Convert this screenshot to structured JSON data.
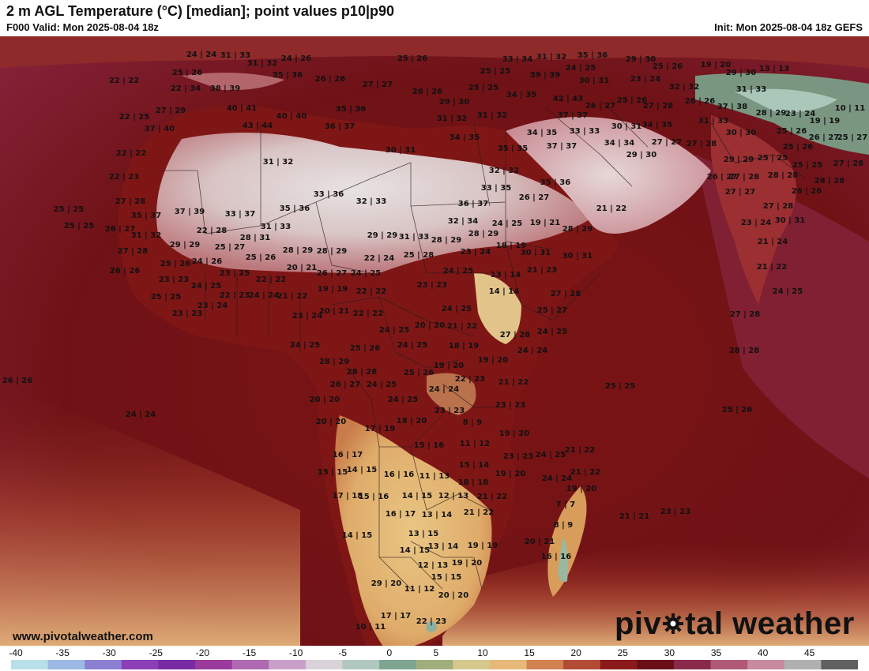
{
  "header": {
    "title": "2 m AGL Temperature (°C) [median]; point values p10|p90",
    "valid": "F000 Valid: Mon 2025-08-04 18z",
    "init": "Init: Mon 2025-08-04 18z GEFS"
  },
  "footer": {
    "website": "www.pivotalweather.com",
    "brand_left": "piv",
    "brand_right": "tal weather"
  },
  "colorbar": {
    "ticks": [
      "-40",
      "-35",
      "-30",
      "-25",
      "-20",
      "-15",
      "-10",
      "-5",
      "0",
      "5",
      "10",
      "15",
      "20",
      "25",
      "30",
      "35",
      "40",
      "45"
    ],
    "stops": [
      "#b9dfe9",
      "#9bb9e4",
      "#8a7fd3",
      "#8a3fb7",
      "#7a2aa2",
      "#9a3a9c",
      "#b06ab2",
      "#c9a0c9",
      "#d9d2d9",
      "#b0c8c0",
      "#7fa48f",
      "#9fae7a",
      "#d6c78c",
      "#e6b87a",
      "#d28150",
      "#b24c34",
      "#8b1a1a",
      "#6a0f16",
      "#8a2a4a",
      "#b05a78",
      "#c78aa0",
      "#b0b0b0",
      "#606060"
    ]
  },
  "map_layers": [
    "land-temperature-field",
    "ocean-temperature-field",
    "country-borders"
  ],
  "points": [
    [
      "24 | 24",
      255,
      69
    ],
    [
      "31 | 33",
      298,
      70
    ],
    [
      "24 | 26",
      375,
      74
    ],
    [
      "25 | 26",
      522,
      74
    ],
    [
      "33 | 34",
      655,
      75
    ],
    [
      "31 | 32",
      698,
      72
    ],
    [
      "35 | 36",
      750,
      70
    ],
    [
      "29 | 30",
      811,
      75
    ],
    [
      "25 | 26",
      845,
      84
    ],
    [
      "19 | 20",
      906,
      82
    ],
    [
      "22 | 22",
      157,
      102
    ],
    [
      "25 | 26",
      237,
      92
    ],
    [
      "31 | 32",
      332,
      80
    ],
    [
      "35 | 36",
      364,
      95
    ],
    [
      "26 | 26",
      418,
      100
    ],
    [
      "25 | 25",
      627,
      90
    ],
    [
      "39 | 39",
      690,
      95
    ],
    [
      "24 | 25",
      735,
      86
    ],
    [
      "30 | 31",
      752,
      102
    ],
    [
      "23 | 24",
      817,
      100
    ],
    [
      "29 | 30",
      938,
      92
    ],
    [
      "13 | 13",
      980,
      87
    ],
    [
      "22 | 34",
      235,
      112
    ],
    [
      "38 | 39",
      285,
      112
    ],
    [
      "27 | 27",
      478,
      107
    ],
    [
      "26 | 26",
      541,
      116
    ],
    [
      "25 | 25",
      612,
      111
    ],
    [
      "34 | 35",
      660,
      120
    ],
    [
      "42 | 43",
      719,
      125
    ],
    [
      "32 | 32",
      866,
      110
    ],
    [
      "31 | 33",
      951,
      113
    ],
    [
      "40 | 41",
      306,
      137
    ],
    [
      "40 | 40",
      369,
      147
    ],
    [
      "35 | 36",
      444,
      138
    ],
    [
      "29 | 30",
      575,
      129
    ],
    [
      "27 | 29",
      216,
      140
    ],
    [
      "26 | 27",
      760,
      134
    ],
    [
      "25 | 26",
      800,
      127
    ],
    [
      "27 | 28",
      833,
      134
    ],
    [
      "26 | 26",
      886,
      128
    ],
    [
      "37 | 38",
      927,
      135
    ],
    [
      "10 | 11",
      1076,
      137
    ],
    [
      "22 | 25",
      170,
      148
    ],
    [
      "43 | 44",
      326,
      159
    ],
    [
      "36 | 37",
      430,
      160
    ],
    [
      "31 | 32",
      572,
      150
    ],
    [
      "31 | 32",
      623,
      146
    ],
    [
      "37 | 37",
      725,
      146
    ],
    [
      "31 | 33",
      903,
      153
    ],
    [
      "28 | 29",
      976,
      143
    ],
    [
      "23 | 24",
      1013,
      144
    ],
    [
      "19 | 19",
      1044,
      153
    ],
    [
      "37 | 40",
      202,
      163
    ],
    [
      "34 | 35",
      588,
      174
    ],
    [
      "34 | 35",
      686,
      168
    ],
    [
      "33 | 33",
      740,
      166
    ],
    [
      "30 | 31",
      793,
      160
    ],
    [
      "34 | 35",
      832,
      158
    ],
    [
      "30 | 30",
      938,
      168
    ],
    [
      "25 | 26",
      1002,
      166
    ],
    [
      "26 | 27",
      1043,
      174
    ],
    [
      "25 | 27",
      1079,
      174
    ],
    [
      "22 | 22",
      166,
      194
    ],
    [
      "30 | 31",
      507,
      190
    ],
    [
      "35 | 35",
      649,
      188
    ],
    [
      "37 | 37",
      711,
      185
    ],
    [
      "34 | 34",
      784,
      181
    ],
    [
      "27 | 27",
      844,
      180
    ],
    [
      "27 | 28",
      888,
      182
    ],
    [
      "25 | 26",
      1010,
      186
    ],
    [
      "31 | 32",
      352,
      205
    ],
    [
      "29 | 30",
      812,
      196
    ],
    [
      "29 | 29",
      935,
      202
    ],
    [
      "25 | 25",
      978,
      200
    ],
    [
      "25 | 25",
      1022,
      209
    ],
    [
      "27 | 28",
      1074,
      207
    ],
    [
      "22 | 23",
      157,
      224
    ],
    [
      "32 | 32",
      638,
      216
    ],
    [
      "35 | 36",
      703,
      231
    ],
    [
      "26 | 27",
      914,
      224
    ],
    [
      "27 | 28",
      942,
      224
    ],
    [
      "28 | 28",
      991,
      222
    ],
    [
      "28 | 28",
      1050,
      229
    ],
    [
      "33 | 36",
      416,
      246
    ],
    [
      "32 | 33",
      470,
      255
    ],
    [
      "33 | 35",
      628,
      238
    ],
    [
      "26 | 26",
      1021,
      242
    ],
    [
      "27 | 27",
      937,
      243
    ],
    [
      "27 | 28",
      165,
      255
    ],
    [
      "36 | 37",
      599,
      258
    ],
    [
      "26 | 27",
      676,
      250
    ],
    [
      "21 | 22",
      774,
      264
    ],
    [
      "27 | 28",
      985,
      261
    ],
    [
      "25 | 25",
      87,
      265
    ],
    [
      "35 | 37",
      185,
      273
    ],
    [
      "37 | 39",
      240,
      268
    ],
    [
      "33 | 37",
      304,
      271
    ],
    [
      "35 | 36",
      373,
      264
    ],
    [
      "32 | 34",
      586,
      280
    ],
    [
      "24 | 25",
      642,
      283
    ],
    [
      "19 | 21",
      690,
      282
    ],
    [
      "23 | 24",
      957,
      282
    ],
    [
      "30 | 31",
      1000,
      279
    ],
    [
      "25 | 25",
      100,
      286
    ],
    [
      "26 | 27",
      152,
      290
    ],
    [
      "31 | 33",
      349,
      287
    ],
    [
      "22 | 28",
      268,
      292
    ],
    [
      "28 | 29",
      612,
      296
    ],
    [
      "28 | 29",
      731,
      290
    ],
    [
      "31 | 32",
      185,
      298
    ],
    [
      "28 | 31",
      323,
      301
    ],
    [
      "29 | 29",
      484,
      298
    ],
    [
      "31 | 33",
      524,
      300
    ],
    [
      "28 | 29",
      565,
      304
    ],
    [
      "18 | 19",
      647,
      311
    ],
    [
      "21 | 24",
      978,
      306
    ],
    [
      "27 | 28",
      168,
      318
    ],
    [
      "29 | 29",
      234,
      310
    ],
    [
      "25 | 27",
      291,
      313
    ],
    [
      "28 | 29",
      377,
      317
    ],
    [
      "28 | 29",
      420,
      318
    ],
    [
      "22 | 24",
      480,
      327
    ],
    [
      "25 | 28",
      530,
      323
    ],
    [
      "23 | 24",
      602,
      319
    ],
    [
      "30 | 31",
      678,
      320
    ],
    [
      "30 | 31",
      731,
      324
    ],
    [
      "26 | 26",
      158,
      343
    ],
    [
      "25 | 26",
      222,
      334
    ],
    [
      "24 | 26",
      262,
      331
    ],
    [
      "25 | 26",
      330,
      326
    ],
    [
      "20 | 21",
      382,
      339
    ],
    [
      "26 | 27",
      420,
      346
    ],
    [
      "24 | 25",
      463,
      346
    ],
    [
      "24 | 25",
      580,
      343
    ],
    [
      "13 | 14",
      640,
      348
    ],
    [
      "21 | 23",
      686,
      342
    ],
    [
      "21 | 22",
      977,
      338
    ],
    [
      "23 | 23",
      220,
      354
    ],
    [
      "24 | 25",
      261,
      362
    ],
    [
      "23 | 25",
      297,
      346
    ],
    [
      "22 | 22",
      343,
      354
    ],
    [
      "19 | 19",
      421,
      366
    ],
    [
      "22 | 22",
      470,
      369
    ],
    [
      "23 | 23",
      547,
      361
    ],
    [
      "14 | 14",
      638,
      369
    ],
    [
      "27 | 28",
      716,
      372
    ],
    [
      "25 | 25",
      210,
      376
    ],
    [
      "22 | 23",
      297,
      374
    ],
    [
      "24 | 24",
      334,
      374
    ],
    [
      "21 | 22",
      370,
      375
    ],
    [
      "24 | 25",
      578,
      391
    ],
    [
      "25 | 27",
      699,
      393
    ],
    [
      "24 | 25",
      997,
      369
    ],
    [
      "23 | 23",
      237,
      397
    ],
    [
      "23 | 24",
      269,
      387
    ],
    [
      "23 | 24",
      389,
      400
    ],
    [
      "20 | 21",
      423,
      394
    ],
    [
      "22 | 22",
      466,
      397
    ],
    [
      "27 | 28",
      943,
      398
    ],
    [
      "24 | 25",
      499,
      418
    ],
    [
      "20 | 20",
      544,
      412
    ],
    [
      "21 | 22",
      585,
      413
    ],
    [
      "27 | 28",
      652,
      424
    ],
    [
      "24 | 25",
      699,
      420
    ],
    [
      "24 | 25",
      386,
      437
    ],
    [
      "25 | 26",
      462,
      441
    ],
    [
      "24 | 25",
      522,
      437
    ],
    [
      "18 | 19",
      587,
      438
    ],
    [
      "24 | 24",
      674,
      444
    ],
    [
      "28 | 28",
      942,
      444
    ],
    [
      "28 | 29",
      423,
      458
    ],
    [
      "19 | 20",
      624,
      456
    ],
    [
      "26 | 26",
      22,
      482
    ],
    [
      "28 | 28",
      458,
      471
    ],
    [
      "25 | 26",
      530,
      472
    ],
    [
      "19 | 20",
      568,
      463
    ],
    [
      "22 | 23",
      595,
      480
    ],
    [
      "21 | 22",
      650,
      484
    ],
    [
      "25 | 25",
      785,
      489
    ],
    [
      "26 | 27",
      437,
      487
    ],
    [
      "24 | 25",
      483,
      487
    ],
    [
      "24 | 24",
      562,
      493
    ],
    [
      "20 | 20",
      411,
      506
    ],
    [
      "24 | 25",
      510,
      506
    ],
    [
      "23 | 23",
      646,
      513
    ],
    [
      "25 | 26",
      933,
      519
    ],
    [
      "24 | 24",
      178,
      525
    ],
    [
      "23 | 23",
      569,
      520
    ],
    [
      "20 | 20",
      419,
      534
    ],
    [
      "17 | 19",
      481,
      543
    ],
    [
      "18 | 20",
      521,
      533
    ],
    [
      "8 | 9",
      598,
      535
    ],
    [
      "19 | 20",
      651,
      549
    ],
    [
      "15 | 16",
      543,
      564
    ],
    [
      "11 | 12",
      601,
      562
    ],
    [
      "23 | 23",
      656,
      578
    ],
    [
      "24 | 25",
      697,
      576
    ],
    [
      "21 | 22",
      734,
      570
    ],
    [
      "16 | 17",
      440,
      576
    ],
    [
      "14 | 15",
      458,
      595
    ],
    [
      "15 | 14",
      600,
      589
    ],
    [
      "15 | 15",
      421,
      598
    ],
    [
      "16 | 16",
      505,
      601
    ],
    [
      "11 | 13",
      550,
      603
    ],
    [
      "18 | 18",
      599,
      611
    ],
    [
      "19 | 20",
      646,
      600
    ],
    [
      "24 | 24",
      705,
      606
    ],
    [
      "21 | 22",
      741,
      598
    ],
    [
      "17 | 18",
      440,
      628
    ],
    [
      "15 | 16",
      473,
      629
    ],
    [
      "14 | 15",
      528,
      628
    ],
    [
      "12 | 13",
      574,
      628
    ],
    [
      "21 | 22",
      623,
      629
    ],
    [
      "19 | 20",
      736,
      619
    ],
    [
      "7 | 7",
      716,
      639
    ],
    [
      "16 | 17",
      507,
      651
    ],
    [
      "13 | 14",
      553,
      652
    ],
    [
      "21 | 22",
      606,
      649
    ],
    [
      "21 | 21",
      803,
      654
    ],
    [
      "23 | 23",
      855,
      648
    ],
    [
      "14 | 15",
      452,
      678
    ],
    [
      "13 | 15",
      536,
      676
    ],
    [
      "8 | 9",
      713,
      665
    ],
    [
      "20 | 21",
      683,
      686
    ],
    [
      "14 | 15",
      525,
      697
    ],
    [
      "13 | 14",
      561,
      692
    ],
    [
      "19 | 19",
      611,
      691
    ],
    [
      "16 | 16",
      704,
      705
    ],
    [
      "12 | 13",
      548,
      716
    ],
    [
      "19 | 20",
      591,
      713
    ],
    [
      "29 | 20",
      489,
      739
    ],
    [
      "15 | 15",
      565,
      731
    ],
    [
      "11 | 12",
      531,
      746
    ],
    [
      "20 | 20",
      574,
      754
    ],
    [
      "17 | 17",
      501,
      780
    ],
    [
      "22 | 23",
      546,
      787
    ],
    [
      "10 | 11",
      469,
      794
    ]
  ]
}
